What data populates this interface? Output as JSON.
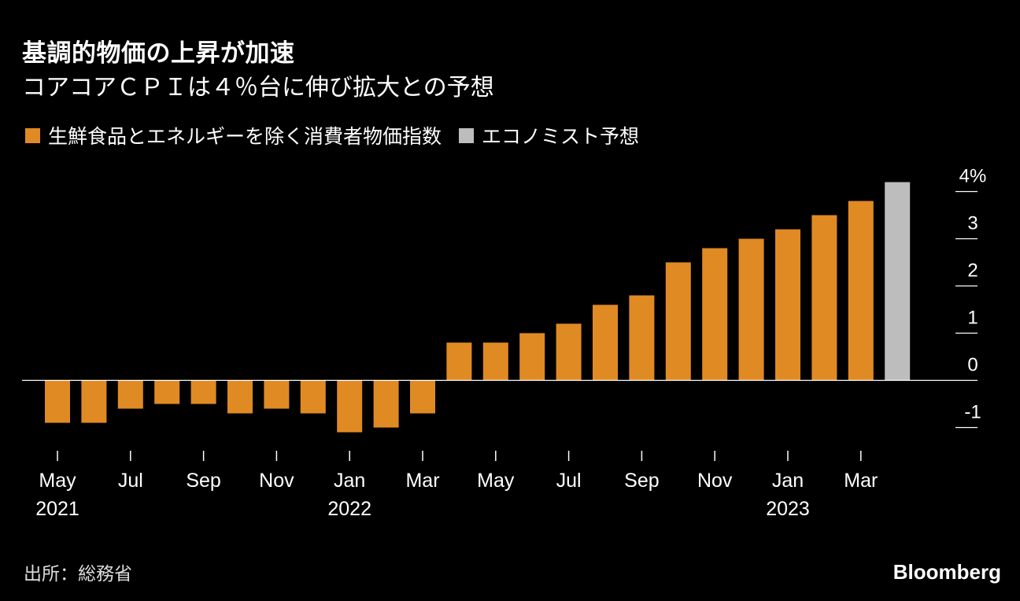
{
  "header": {
    "title": "基調的物価の上昇が加速",
    "subtitle": "コアコアＣＰＩは４％台に伸び拡大との予想"
  },
  "legend": [
    {
      "label": "生鮮食品とエネルギーを除く消費者物価指数",
      "color": "#E08A24"
    },
    {
      "label": "エコノミスト予想",
      "color": "#BDBDBD"
    }
  ],
  "footer": {
    "source": "出所：総務省",
    "brand": "Bloomberg"
  },
  "chart_data": {
    "type": "bar",
    "categories": [
      "May 2021",
      "Jun 2021",
      "Jul 2021",
      "Aug 2021",
      "Sep 2021",
      "Oct 2021",
      "Nov 2021",
      "Dec 2021",
      "Jan 2022",
      "Feb 2022",
      "Mar 2022",
      "Apr 2022",
      "May 2022",
      "Jun 2022",
      "Jul 2022",
      "Aug 2022",
      "Sep 2022",
      "Oct 2022",
      "Nov 2022",
      "Dec 2022",
      "Jan 2023",
      "Feb 2023",
      "Mar 2023",
      "Apr 2023"
    ],
    "series": [
      {
        "name": "生鮮食品とエネルギーを除く消費者物価指数",
        "color": "#E08A24",
        "values": [
          -0.9,
          -0.9,
          -0.6,
          -0.5,
          -0.5,
          -0.7,
          -0.6,
          -0.7,
          -1.1,
          -1.0,
          -0.7,
          0.8,
          0.8,
          1.0,
          1.2,
          1.6,
          1.8,
          2.5,
          2.8,
          3.0,
          3.2,
          3.5,
          3.8,
          null
        ]
      },
      {
        "name": "エコノミスト予想",
        "color": "#BDBDBD",
        "values": [
          null,
          null,
          null,
          null,
          null,
          null,
          null,
          null,
          null,
          null,
          null,
          null,
          null,
          null,
          null,
          null,
          null,
          null,
          null,
          null,
          null,
          null,
          null,
          4.2
        ]
      }
    ],
    "ylim": [
      -1.4,
      4.2
    ],
    "yticks": [
      {
        "value": 4,
        "label": "4%"
      },
      {
        "value": 3,
        "label": "3"
      },
      {
        "value": 2,
        "label": "2"
      },
      {
        "value": 1,
        "label": "1"
      },
      {
        "value": 0,
        "label": "0"
      },
      {
        "value": -1,
        "label": "-1"
      }
    ],
    "xticks": [
      {
        "index": 0,
        "label": "May",
        "year": "2021"
      },
      {
        "index": 2,
        "label": "Jul",
        "year": ""
      },
      {
        "index": 4,
        "label": "Sep",
        "year": ""
      },
      {
        "index": 6,
        "label": "Nov",
        "year": ""
      },
      {
        "index": 8,
        "label": "Jan",
        "year": "2022"
      },
      {
        "index": 10,
        "label": "Mar",
        "year": ""
      },
      {
        "index": 12,
        "label": "May",
        "year": ""
      },
      {
        "index": 14,
        "label": "Jul",
        "year": ""
      },
      {
        "index": 16,
        "label": "Sep",
        "year": ""
      },
      {
        "index": 18,
        "label": "Nov",
        "year": ""
      },
      {
        "index": 20,
        "label": "Jan",
        "year": "2023"
      },
      {
        "index": 22,
        "label": "Mar",
        "year": ""
      }
    ],
    "grid": false,
    "legend_position": "top-left"
  }
}
